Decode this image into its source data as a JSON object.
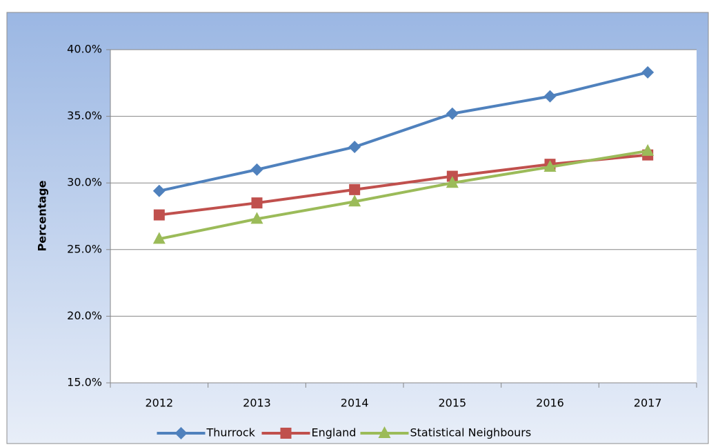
{
  "chart_data": {
    "type": "line",
    "y_label": "Percentage",
    "categories": [
      "2012",
      "2013",
      "2014",
      "2015",
      "2016",
      "2017"
    ],
    "series": [
      {
        "name": "Thurrock",
        "color": "#4f81bd",
        "marker": "diamond",
        "values": [
          29.4,
          31.0,
          32.7,
          35.2,
          36.5,
          38.3
        ]
      },
      {
        "name": "England",
        "color": "#c0504d",
        "marker": "square",
        "values": [
          27.6,
          28.5,
          29.5,
          30.5,
          31.4,
          32.1
        ]
      },
      {
        "name": "Statistical Neighbours",
        "color": "#9bbb59",
        "marker": "triangle",
        "values": [
          25.8,
          27.3,
          28.6,
          30.0,
          31.2,
          32.4
        ]
      }
    ],
    "ylim": [
      15,
      40
    ],
    "yticks": [
      {
        "value": 15,
        "label": "15.0%"
      },
      {
        "value": 20,
        "label": "20.0%"
      },
      {
        "value": 25,
        "label": "25.0%"
      },
      {
        "value": 30,
        "label": "30.0%"
      },
      {
        "value": 35,
        "label": "35.0%"
      },
      {
        "value": 40,
        "label": "40.0%"
      }
    ],
    "grid": true,
    "legend": "bottom"
  }
}
